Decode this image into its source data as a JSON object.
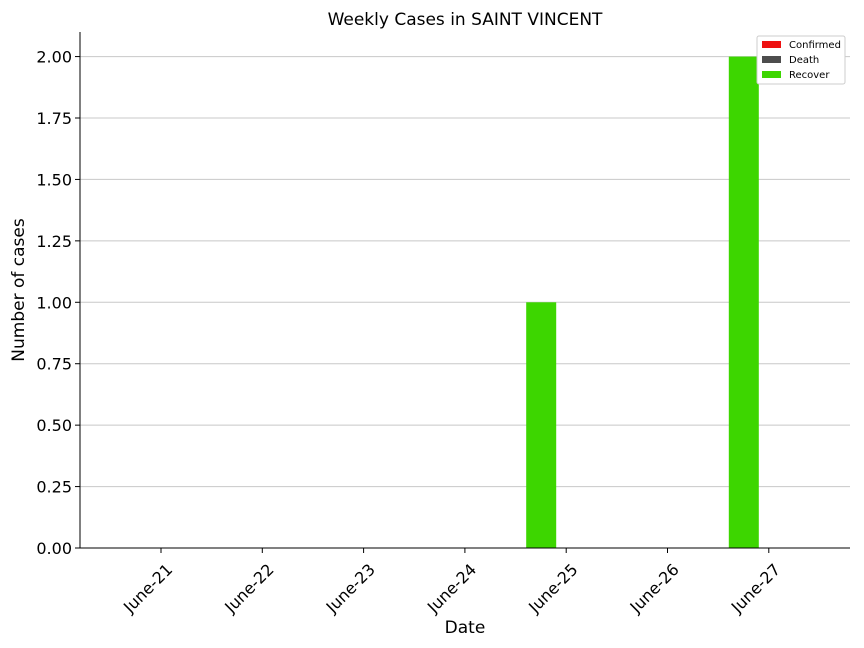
{
  "chart_data": {
    "type": "bar",
    "title": "Weekly Cases in SAINT VINCENT",
    "xlabel": "Date",
    "ylabel": "Number of cases",
    "categories": [
      "June-21",
      "June-22",
      "June-23",
      "June-24",
      "June-25",
      "June-26",
      "June-27"
    ],
    "series": [
      {
        "name": "Confirmed",
        "color": "#ee1111",
        "values": [
          0,
          0,
          0,
          0,
          0,
          0,
          0
        ]
      },
      {
        "name": "Death",
        "color": "#4d4d4d",
        "values": [
          0,
          0,
          0,
          0,
          0,
          0,
          0
        ]
      },
      {
        "name": "Recover",
        "color": "#3dd600",
        "values": [
          0,
          0,
          0,
          0,
          1,
          0,
          2
        ]
      }
    ],
    "ylim": [
      0,
      2.1
    ],
    "yticks": [
      "0.00",
      "0.25",
      "0.50",
      "0.75",
      "1.00",
      "1.25",
      "1.50",
      "1.75",
      "2.00"
    ],
    "grid": "horizontal",
    "legend_position": "top-right"
  }
}
